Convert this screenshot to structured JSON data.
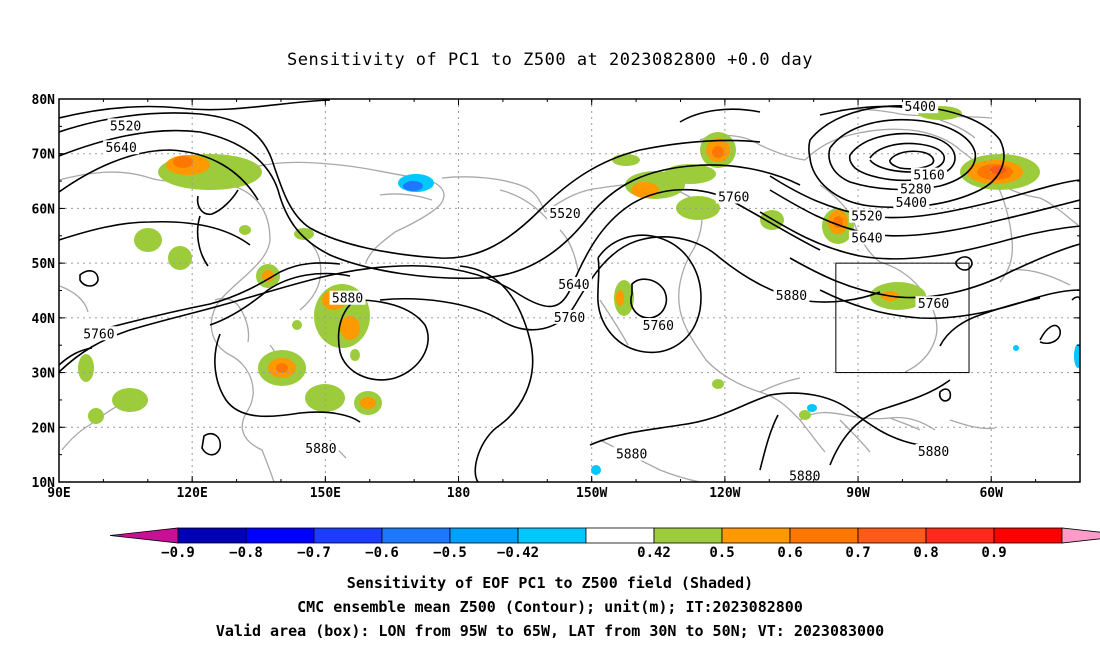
{
  "title": "Sensitivity of PC1 to Z500 at 2023082800 +0.0 day",
  "axes": {
    "lon_ticks": [
      {
        "lon": 90,
        "label": "90E"
      },
      {
        "lon": 120,
        "label": "120E"
      },
      {
        "lon": 150,
        "label": "150E"
      },
      {
        "lon": 180,
        "label": "180"
      },
      {
        "lon": 210,
        "label": "150W"
      },
      {
        "lon": 240,
        "label": "120W"
      },
      {
        "lon": 270,
        "label": "90W"
      },
      {
        "lon": 300,
        "label": "60W"
      }
    ],
    "lat_ticks": [
      {
        "lat": 80,
        "label": "80N"
      },
      {
        "lat": 70,
        "label": "70N"
      },
      {
        "lat": 60,
        "label": "60N"
      },
      {
        "lat": 50,
        "label": "50N"
      },
      {
        "lat": 40,
        "label": "40N"
      },
      {
        "lat": 30,
        "label": "30N"
      },
      {
        "lat": 20,
        "label": "20N"
      },
      {
        "lat": 10,
        "label": "10N"
      }
    ],
    "lon_range": [
      90,
      320
    ],
    "lat_range": [
      10,
      80
    ],
    "grid": "dotted"
  },
  "valid_box": {
    "lon": [
      265,
      295
    ],
    "lat": [
      30,
      50
    ]
  },
  "contour_labels": [
    {
      "text": "5520",
      "lon": 105,
      "lat": 75
    },
    {
      "text": "5640",
      "lon": 104,
      "lat": 71
    },
    {
      "text": "5520",
      "lon": 204,
      "lat": 59
    },
    {
      "text": "5640",
      "lon": 206,
      "lat": 46
    },
    {
      "text": "5760",
      "lon": 205,
      "lat": 40
    },
    {
      "text": "5760",
      "lon": 99,
      "lat": 37
    },
    {
      "text": "5880",
      "lon": 155,
      "lat": 43.5
    },
    {
      "text": "5880",
      "lon": 149,
      "lat": 16
    },
    {
      "text": "5760",
      "lon": 242,
      "lat": 62
    },
    {
      "text": "5760",
      "lon": 225,
      "lat": 38.5
    },
    {
      "text": "5880",
      "lon": 255,
      "lat": 44
    },
    {
      "text": "5880",
      "lon": 219,
      "lat": 15
    },
    {
      "text": "5880",
      "lon": 258,
      "lat": 11
    },
    {
      "text": "5880",
      "lon": 287,
      "lat": 15.5
    },
    {
      "text": "5400",
      "lon": 284,
      "lat": 78.5
    },
    {
      "text": "5160",
      "lon": 286,
      "lat": 66
    },
    {
      "text": "5280",
      "lon": 283,
      "lat": 63.5
    },
    {
      "text": "5400",
      "lon": 282,
      "lat": 61
    },
    {
      "text": "5520",
      "lon": 272,
      "lat": 58.5
    },
    {
      "text": "5640",
      "lon": 272,
      "lat": 54.5
    },
    {
      "text": "5760",
      "lon": 287,
      "lat": 42.5
    }
  ],
  "shading_colors": {
    "0.42": "#9ccc3c",
    "0.5": "#ff9900",
    "0.6": "#ff7700",
    "0.7": "#ff5a1a",
    "-0.42": "#00c8ff",
    "-0.5": "#1e78ff"
  },
  "colorbar": {
    "colors": [
      "#c80f96",
      "#0000b4",
      "#0000ff",
      "#1e3cff",
      "#1e78ff",
      "#00a0ff",
      "#00c8ff",
      "#ffffff",
      "#9ccc3c",
      "#ff9900",
      "#ff7700",
      "#ff5a1a",
      "#ff2a1a",
      "#ff0000",
      "#ff9bc8"
    ],
    "labels": [
      "-0.9",
      "-0.8",
      "-0.7",
      "-0.6",
      "-0.5",
      "-0.42",
      "0.42",
      "0.5",
      "0.6",
      "0.7",
      "0.8",
      "0.9"
    ]
  },
  "caption": {
    "line1": "Sensitivity of EOF PC1 to Z500 field (Shaded)",
    "line2": "CMC ensemble mean Z500 (Contour); unit(m); IT:2023082800",
    "line3": "Valid area (box): LON from 95W to 65W, LAT from 30N to 50N; VT: 2023083000"
  }
}
